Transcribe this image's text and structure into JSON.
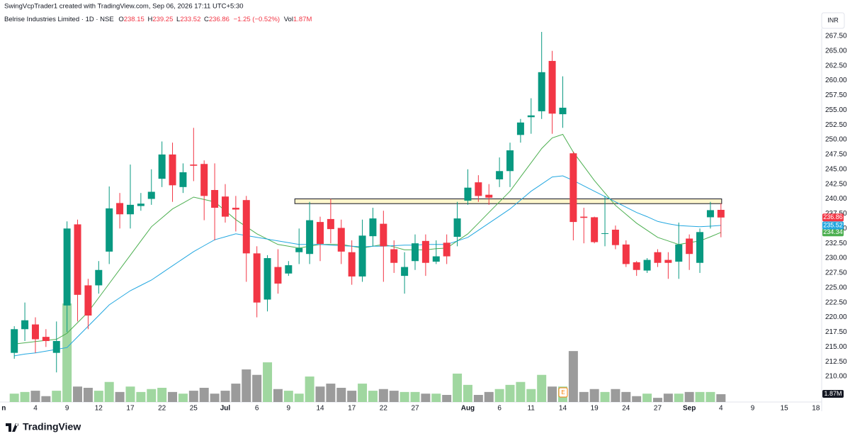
{
  "chart_data": {
    "type": "candlestick",
    "created": "SwingVcpTrader1 created with TradingView.com, Sep 06, 2026 17:11 UTC+5:30",
    "symbol": "Belrise Industries Limited · 1D · NSE",
    "ohlc_prefixes": [
      "O",
      "H",
      "L",
      "C"
    ],
    "change": "−1.25 (−0.52%)",
    "volume_prefix": "Vol",
    "currency": "INR",
    "brand": "TradingView",
    "earnings_label": "E",
    "up_color": "#089981",
    "down_color": "#f23645",
    "volume_up_color": "#8fd08f",
    "volume_down_color": "#8a8a8a",
    "categories": [
      "n",
      null,
      null,
      "4",
      null,
      null,
      "9",
      null,
      null,
      "12",
      null,
      null,
      "17",
      null,
      null,
      "22",
      null,
      null,
      "25",
      null,
      null,
      "Jul",
      null,
      null,
      "6",
      null,
      null,
      "9",
      null,
      null,
      "14",
      null,
      null,
      "17",
      null,
      null,
      "22",
      null,
      null,
      "27",
      null,
      null,
      null,
      null,
      "Aug",
      null,
      null,
      "6",
      null,
      null,
      "11",
      null,
      null,
      "14",
      null,
      null,
      "19",
      null,
      null,
      "24",
      null,
      null,
      "27",
      null,
      null,
      "Sep",
      null,
      null,
      "4",
      null,
      null,
      "9",
      null,
      null,
      "15",
      null,
      null,
      "18"
    ],
    "open": [
      null,
      214,
      218,
      218.8,
      216.7,
      214,
      222,
      235.7,
      225.4,
      225.4,
      231.1,
      239.3,
      237.4,
      238.8,
      240,
      243.4,
      247.5,
      242,
      245.8,
      245.9,
      241.5,
      240.4,
      238.5,
      239.8,
      230.8,
      223,
      228.5,
      227.4,
      231,
      230.7,
      236.1,
      236.6,
      235.1,
      231,
      226.9,
      233.7,
      235.8,
      231.5,
      227,
      229.5,
      232.9,
      229.4,
      232.6,
      233.6,
      239.7,
      242.8,
      240.7,
      243.3,
      244.7,
      250.8,
      253.8,
      254.8,
      263.3,
      254.3,
      247.7,
      237,
      236.9,
      234.1,
      234.8,
      232.3,
      229.3,
      227.9,
      231,
      229.7,
      229.4,
      233.3,
      229.2,
      236.9,
      238.15,
      null,
      null,
      null,
      null,
      null,
      null,
      null,
      null,
      null
    ],
    "high": [
      null,
      218.5,
      222.5,
      220,
      218,
      219.3,
      236.2,
      236.5,
      226.5,
      229.5,
      242.1,
      241,
      245.8,
      241,
      245,
      249.7,
      249.5,
      246,
      252,
      246.5,
      246,
      242.5,
      240.5,
      240.5,
      232,
      230.5,
      231.5,
      229.5,
      235,
      239.5,
      237,
      240,
      236.5,
      233,
      236.5,
      238.5,
      238,
      233,
      231,
      234,
      234,
      233,
      234,
      239.5,
      245,
      244,
      242.5,
      247,
      249.5,
      253.5,
      257,
      268.2,
      265,
      260.7,
      248,
      238.5,
      237,
      240.5,
      235.5,
      233,
      229.5,
      230,
      231.5,
      231,
      236,
      234,
      235,
      239.5,
      239.25,
      null,
      null,
      null,
      null,
      null,
      null,
      null,
      null,
      null
    ],
    "low": [
      null,
      213,
      216,
      214,
      215,
      210.7,
      217.5,
      219.3,
      218,
      224,
      229,
      235,
      235,
      238,
      239,
      242,
      239.5,
      241,
      243,
      236.4,
      233,
      236,
      234.5,
      226,
      220,
      221,
      224,
      227,
      229,
      229,
      229.5,
      232.5,
      229,
      225.5,
      226,
      232,
      226,
      227.5,
      224,
      228,
      227,
      229,
      229,
      232,
      239,
      239.5,
      239,
      242,
      242,
      249.5,
      251,
      253.5,
      251,
      252,
      233,
      232.5,
      232.5,
      232,
      231.5,
      228.5,
      227,
      227.5,
      228.5,
      226.5,
      226.5,
      228,
      227.5,
      235,
      233.52,
      null,
      null,
      null,
      null,
      null,
      null,
      null,
      null,
      null
    ],
    "close": [
      null,
      218,
      219.5,
      216.3,
      216,
      216,
      235,
      223.8,
      220.3,
      228,
      238.4,
      237.4,
      239,
      239.2,
      241.2,
      247.5,
      242.3,
      244.5,
      245.6,
      240.5,
      238.5,
      237,
      238.2,
      230.8,
      222.5,
      230,
      225.7,
      228.8,
      231.7,
      236.4,
      232.4,
      234.9,
      231.1,
      226.9,
      233.8,
      236.7,
      232,
      229.2,
      228.5,
      232.5,
      229.2,
      230.3,
      230.3,
      236.7,
      241.9,
      240.5,
      240.2,
      244.7,
      248.2,
      252.9,
      254.1,
      261.4,
      254.4,
      255.4,
      236.1,
      236.8,
      232.7,
      234.2,
      232.2,
      229,
      228,
      229.7,
      229.2,
      229.2,
      232.3,
      230.7,
      234.4,
      238.1,
      236.86,
      null,
      null,
      null,
      null,
      null,
      null,
      null,
      null,
      null
    ],
    "volume": {
      "values": [
        null,
        2,
        2.4,
        2.7,
        1.4,
        2.7,
        23.6,
        3.7,
        3.4,
        2.7,
        4.8,
        2.4,
        3.7,
        2.4,
        3.1,
        3.4,
        2.4,
        2,
        2.7,
        3.4,
        2,
        2.7,
        4.4,
        7.8,
        6.5,
        9.5,
        3.1,
        2.7,
        2,
        6.1,
        3.7,
        4.4,
        3.4,
        2.7,
        4.4,
        2.7,
        3.1,
        2.7,
        2.4,
        2.4,
        2,
        2,
        1.7,
        6.8,
        4.1,
        1.7,
        2.4,
        3.1,
        4.1,
        4.8,
        3.1,
        6.5,
        3.7,
        3.7,
        12.2,
        2.4,
        3.1,
        2.4,
        3.1,
        2.4,
        1.4,
        2,
        1,
        2,
        2,
        2.4,
        2.4,
        2.4,
        1.87,
        null,
        null,
        null,
        null,
        null,
        null,
        null,
        null,
        null
      ],
      "value_labels": [
        null,
        null,
        null,
        null,
        null,
        null,
        null,
        null,
        null,
        null,
        null,
        null,
        null,
        null,
        null,
        null,
        null,
        null,
        null,
        null,
        null,
        null,
        null,
        null,
        null,
        null,
        null,
        null,
        null,
        null,
        null,
        null,
        null,
        null,
        null,
        null,
        null,
        null,
        null,
        null,
        null,
        null,
        null,
        null,
        null,
        null,
        null,
        null,
        null,
        null,
        null,
        null,
        null,
        null,
        null,
        null,
        null,
        null,
        null,
        null,
        null,
        null,
        null,
        null,
        null,
        null,
        null,
        null,
        "1.87M",
        null,
        null,
        null,
        null,
        null,
        null,
        null,
        null,
        null
      ]
    },
    "series": [
      {
        "color": "#4caf50",
        "values": [
          null,
          215.5,
          215.7,
          215.9,
          216.1,
          216.3,
          217.3,
          219.1,
          220.9,
          223.3,
          225.7,
          228.1,
          230.5,
          232.9,
          235.3,
          236.8,
          238.3,
          239.3,
          240.3,
          239.9,
          239.5,
          238,
          236.5,
          235.3,
          234.1,
          233.2,
          232.3,
          232,
          231.7,
          232,
          232.3,
          232.3,
          232.3,
          232,
          231.7,
          232,
          232.3,
          231.9,
          231.4,
          231.4,
          231.4,
          231.6,
          231.7,
          232.9,
          234.1,
          235.9,
          237.7,
          239.5,
          241.3,
          243.7,
          246.1,
          248.5,
          250.3,
          250.9,
          247.9,
          245.5,
          243.1,
          241,
          238.9,
          237.4,
          235.9,
          234.7,
          233.5,
          232.9,
          232.3,
          232.6,
          232.9,
          233.6,
          234.34,
          null,
          null,
          null,
          null,
          null,
          null,
          null,
          null,
          null
        ]
      },
      {
        "color": "#22a7e0",
        "values": [
          null,
          213.5,
          213.8,
          214,
          214.3,
          214.6,
          214.9,
          216.7,
          218.5,
          220.3,
          222.1,
          223.3,
          224.5,
          225.4,
          226.3,
          227.5,
          228.7,
          229.9,
          231.1,
          232.1,
          233.1,
          233.6,
          234.1,
          233.8,
          233.5,
          233.2,
          232.9,
          232.6,
          232.3,
          232.3,
          232.3,
          232.2,
          232.1,
          232,
          231.9,
          232,
          232,
          232.1,
          232.2,
          232.2,
          232.3,
          232.3,
          232.3,
          232.9,
          233.5,
          234.7,
          235.9,
          237.1,
          238.3,
          239.8,
          241.3,
          242.5,
          243.7,
          243.9,
          243.1,
          242.2,
          241.3,
          240.4,
          239.5,
          238.6,
          237.7,
          237,
          236.2,
          235.8,
          235.5,
          235.4,
          235.3,
          235.4,
          235.52,
          null,
          null,
          null,
          null,
          null,
          null,
          null,
          null,
          null
        ]
      }
    ],
    "zone": {
      "high": 240,
      "low": 239.2,
      "color": "#fff6cc"
    },
    "ylim": [
      205.7,
      268.8
    ],
    "yticks": [
      {
        "value": 210,
        "label": "210.00"
      },
      {
        "value": 212.5,
        "label": "212.50"
      },
      {
        "value": 215,
        "label": "215.00"
      },
      {
        "value": 217.5,
        "label": "217.50"
      },
      {
        "value": 220,
        "label": "220.00"
      },
      {
        "value": 222.5,
        "label": "222.50"
      },
      {
        "value": 225,
        "label": "225.00"
      },
      {
        "value": 227.5,
        "label": "227.50"
      },
      {
        "value": 230,
        "label": "230.00"
      },
      {
        "value": 232.5,
        "label": "232.50"
      },
      {
        "value": 235,
        "label": "235.00"
      },
      {
        "value": 237.5,
        "label": "237.50"
      },
      {
        "value": 240,
        "label": "240.00"
      },
      {
        "value": 242.5,
        "label": "242.50"
      },
      {
        "value": 245,
        "label": "245.00"
      },
      {
        "value": 247.5,
        "label": "247.50"
      },
      {
        "value": 250,
        "label": "250.00"
      },
      {
        "value": 252.5,
        "label": "252.50"
      },
      {
        "value": 255,
        "label": "255.00"
      },
      {
        "value": 257.5,
        "label": "257.50"
      },
      {
        "value": 260,
        "label": "260.00"
      },
      {
        "value": 262.5,
        "label": "262.50"
      },
      {
        "value": 265,
        "label": "265.00"
      },
      {
        "value": 267.5,
        "label": "267.50"
      }
    ],
    "grid": false
  }
}
